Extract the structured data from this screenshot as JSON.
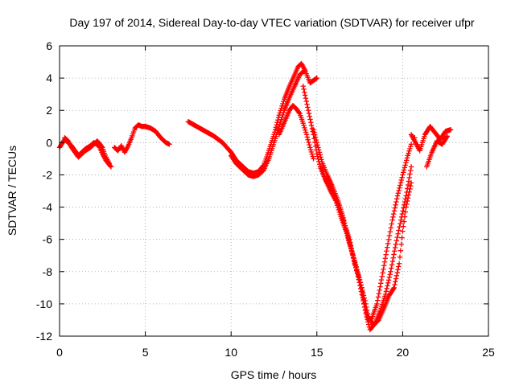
{
  "chart_data": {
    "type": "scatter",
    "title": "Day 197 of 2014, Sidereal Day-to-day VTEC variation (SDTVAR) for receiver ufpr",
    "xlabel": "GPS time / hours",
    "ylabel": "SDTVAR / TECUs",
    "xlim": [
      0,
      25
    ],
    "ylim": [
      -12,
      6
    ],
    "xticks": [
      "0",
      "5",
      "10",
      "15",
      "20",
      "25"
    ],
    "yticks": [
      "-12",
      "-10",
      "-8",
      "-6",
      "-4",
      "-2",
      "0",
      "2",
      "4",
      "6"
    ],
    "grid": true,
    "marker": "plus",
    "color": "#ff0000",
    "segments": [
      {
        "x": [
          0.0,
          0.3,
          0.5,
          0.7,
          0.9,
          1.1,
          1.3,
          1.5,
          1.8,
          2.0,
          2.3,
          2.5,
          2.7,
          3.0
        ],
        "y": [
          -0.3,
          0.2,
          0.0,
          -0.2,
          -0.5,
          -0.8,
          -0.6,
          -0.4,
          -0.2,
          0.0,
          -0.2,
          -0.7,
          -1.1,
          -1.5
        ]
      },
      {
        "x": [
          0.3,
          0.5,
          0.7,
          0.9,
          1.1,
          1.3,
          1.5,
          1.8,
          2.0,
          2.2,
          2.5,
          2.7,
          2.9
        ],
        "y": [
          0.3,
          0.1,
          -0.3,
          -0.6,
          -0.9,
          -0.7,
          -0.5,
          -0.3,
          -0.1,
          0.1,
          -0.3,
          -0.9,
          -1.3
        ]
      },
      {
        "x": [
          3.2,
          3.4,
          3.6,
          3.8,
          4.0,
          4.2,
          4.4,
          4.6,
          4.8,
          5.0,
          5.3,
          5.6,
          5.9,
          6.2,
          6.4
        ],
        "y": [
          -0.3,
          -0.5,
          -0.2,
          -0.6,
          -0.2,
          0.3,
          0.9,
          1.1,
          1.0,
          1.0,
          0.9,
          0.7,
          0.3,
          0.0,
          -0.1
        ]
      },
      {
        "x": [
          7.5,
          8.0,
          8.5,
          9.0,
          9.5,
          10.0,
          10.3,
          10.7,
          11.0,
          11.3,
          11.6,
          11.9,
          12.2,
          12.5,
          12.8,
          13.1,
          13.4,
          13.7,
          13.9,
          14.1,
          14.3,
          14.6,
          15.0
        ],
        "y": [
          1.3,
          1.0,
          0.7,
          0.4,
          0.0,
          -0.6,
          -1.1,
          -1.5,
          -1.8,
          -1.9,
          -1.8,
          -1.4,
          -0.5,
          0.5,
          1.7,
          2.7,
          3.5,
          4.2,
          4.7,
          4.9,
          4.5,
          3.7,
          4.0
        ]
      },
      {
        "x": [
          10.0,
          10.3,
          10.7,
          11.0,
          11.3,
          11.6,
          11.9,
          12.2,
          12.5,
          12.8,
          13.1,
          13.4,
          13.7,
          14.0,
          14.3
        ],
        "y": [
          -0.8,
          -1.3,
          -1.7,
          -2.0,
          -2.1,
          -2.0,
          -1.7,
          -1.0,
          0.0,
          1.0,
          2.0,
          2.8,
          3.5,
          4.2,
          4.5
        ]
      },
      {
        "x": [
          12.8,
          13.0,
          13.2,
          13.4,
          13.6,
          13.8,
          14.0,
          14.2,
          14.4,
          14.6,
          14.8
        ],
        "y": [
          0.5,
          1.0,
          1.5,
          2.0,
          2.3,
          2.1,
          1.8,
          1.2,
          0.5,
          -0.3,
          -1.0
        ]
      },
      {
        "x": [
          14.2,
          14.5,
          14.8,
          15.0,
          15.2,
          15.5,
          15.8,
          16.0,
          16.3,
          16.6,
          16.9,
          17.2,
          17.5,
          17.8,
          18.0,
          18.3,
          18.6,
          18.9,
          19.2,
          19.5,
          19.8,
          20.0,
          20.2,
          20.5
        ],
        "y": [
          3.5,
          2.0,
          0.5,
          -0.7,
          -1.5,
          -2.3,
          -2.8,
          -3.2,
          -4.0,
          -5.0,
          -6.0,
          -7.5,
          -8.5,
          -9.8,
          -10.8,
          -11.3,
          -11.0,
          -10.3,
          -9.5,
          -9.0,
          -7.5,
          -5.5,
          -4.0,
          -2.5
        ]
      },
      {
        "x": [
          14.8,
          15.0,
          15.3,
          15.6,
          15.9,
          16.2,
          16.5,
          16.8,
          17.1,
          17.4,
          17.7,
          17.9,
          18.1,
          18.4,
          18.7,
          19.0,
          19.3,
          19.6,
          19.9,
          20.2,
          20.5
        ],
        "y": [
          0.8,
          0.0,
          -1.2,
          -2.0,
          -2.7,
          -3.5,
          -4.5,
          -5.8,
          -7.0,
          -8.3,
          -9.8,
          -10.8,
          -11.6,
          -11.2,
          -10.4,
          -9.4,
          -8.0,
          -6.3,
          -4.8,
          -3.3,
          -1.5
        ]
      },
      {
        "x": [
          15.2,
          15.5,
          15.8,
          16.1,
          16.4,
          16.7,
          17.0,
          17.3,
          17.6,
          17.8,
          18.0,
          18.2,
          18.5,
          18.8,
          19.1,
          19.4,
          19.7,
          20.0,
          20.3,
          20.5
        ],
        "y": [
          -1.5,
          -2.3,
          -3.0,
          -3.6,
          -4.6,
          -5.5,
          -6.6,
          -7.7,
          -9.0,
          -10.2,
          -11.0,
          -10.9,
          -10.0,
          -8.3,
          -6.5,
          -4.8,
          -3.3,
          -2.0,
          -0.8,
          -0.1
        ]
      },
      {
        "x": [
          20.5,
          21.0,
          21.3,
          21.6,
          21.9,
          22.2,
          22.5,
          22.8,
          21.4,
          21.7,
          22.0,
          22.3,
          22.6,
          20.7
        ],
        "y": [
          0.5,
          -0.5,
          0.5,
          1.0,
          0.6,
          0.2,
          0.7,
          0.8,
          -1.5,
          -0.6,
          0.1,
          -0.1,
          0.4,
          0.3
        ]
      }
    ]
  }
}
